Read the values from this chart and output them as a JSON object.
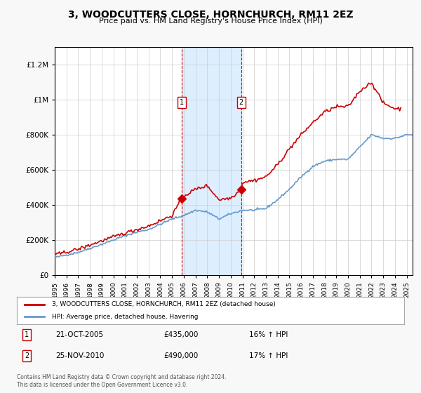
{
  "title": "3, WOODCUTTERS CLOSE, HORNCHURCH, RM11 2EZ",
  "subtitle": "Price paid vs. HM Land Registry's House Price Index (HPI)",
  "legend_line1": "3, WOODCUTTERS CLOSE, HORNCHURCH, RM11 2EZ (detached house)",
  "legend_line2": "HPI: Average price, detached house, Havering",
  "annotation1_label": "1",
  "annotation1_date": "21-OCT-2005",
  "annotation1_price": "£435,000",
  "annotation1_hpi": "16% ↑ HPI",
  "annotation2_label": "2",
  "annotation2_date": "25-NOV-2010",
  "annotation2_price": "£490,000",
  "annotation2_hpi": "17% ↑ HPI",
  "footnote": "Contains HM Land Registry data © Crown copyright and database right 2024.\nThis data is licensed under the Open Government Licence v3.0.",
  "sale1_x": 2005.8,
  "sale1_y": 435000,
  "sale2_x": 2010.9,
  "sale2_y": 490000,
  "vline1_x": 2005.8,
  "vline2_x": 2010.9,
  "shade_x1": 2005.8,
  "shade_x2": 2010.9,
  "ylim": [
    0,
    1300000
  ],
  "xlim_start": 1995,
  "xlim_end": 2025.5,
  "background_color": "#f8f8f8",
  "plot_bg_color": "#ffffff",
  "red_color": "#cc0000",
  "blue_color": "#6699cc",
  "shade_color": "#ddeeff",
  "yticks": [
    0,
    200000,
    400000,
    600000,
    800000,
    1000000,
    1200000
  ],
  "ytick_labels": [
    "£0",
    "£200K",
    "£400K",
    "£600K",
    "£800K",
    "£1M",
    "£1.2M"
  ],
  "xticks": [
    1995,
    1996,
    1997,
    1998,
    1999,
    2000,
    2001,
    2002,
    2003,
    2004,
    2005,
    2006,
    2007,
    2008,
    2009,
    2010,
    2011,
    2012,
    2013,
    2014,
    2015,
    2016,
    2017,
    2018,
    2019,
    2020,
    2021,
    2022,
    2023,
    2024,
    2025
  ]
}
